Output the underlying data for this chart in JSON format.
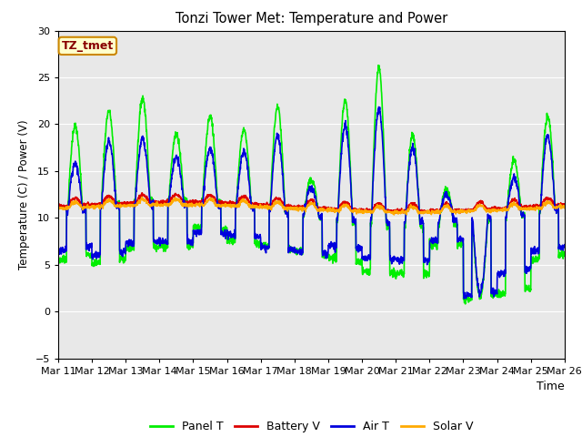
{
  "title": "Tonzi Tower Met: Temperature and Power",
  "xlabel": "Time",
  "ylabel": "Temperature (C) / Power (V)",
  "ylim": [
    -5,
    30
  ],
  "yticks": [
    -5,
    0,
    5,
    10,
    15,
    20,
    25,
    30
  ],
  "x_start_day": 11,
  "x_end_day": 26,
  "x_tick_days": [
    11,
    12,
    13,
    14,
    15,
    16,
    17,
    18,
    19,
    20,
    21,
    22,
    23,
    24,
    25,
    26
  ],
  "x_tick_labels": [
    "Mar 11",
    "Mar 12",
    "Mar 13",
    "Mar 14",
    "Mar 15",
    "Mar 16",
    "Mar 17",
    "Mar 18",
    "Mar 19",
    "Mar 20",
    "Mar 21",
    "Mar 22",
    "Mar 23",
    "Mar 24",
    "Mar 25",
    "Mar 26"
  ],
  "legend_labels": [
    "Panel T",
    "Battery V",
    "Air T",
    "Solar V"
  ],
  "legend_colors": [
    "#00ee00",
    "#dd0000",
    "#0000dd",
    "#ffaa00"
  ],
  "annotation_text": "TZ_tmet",
  "annotation_bg": "#ffffcc",
  "annotation_border": "#cc8800",
  "annotation_text_color": "#880000",
  "bg_color": "#e8e8e8",
  "line_width": 1.2,
  "panel_t_color": "#00ee00",
  "battery_v_color": "#dd0000",
  "air_t_color": "#0000dd",
  "solar_v_color": "#ffaa00"
}
